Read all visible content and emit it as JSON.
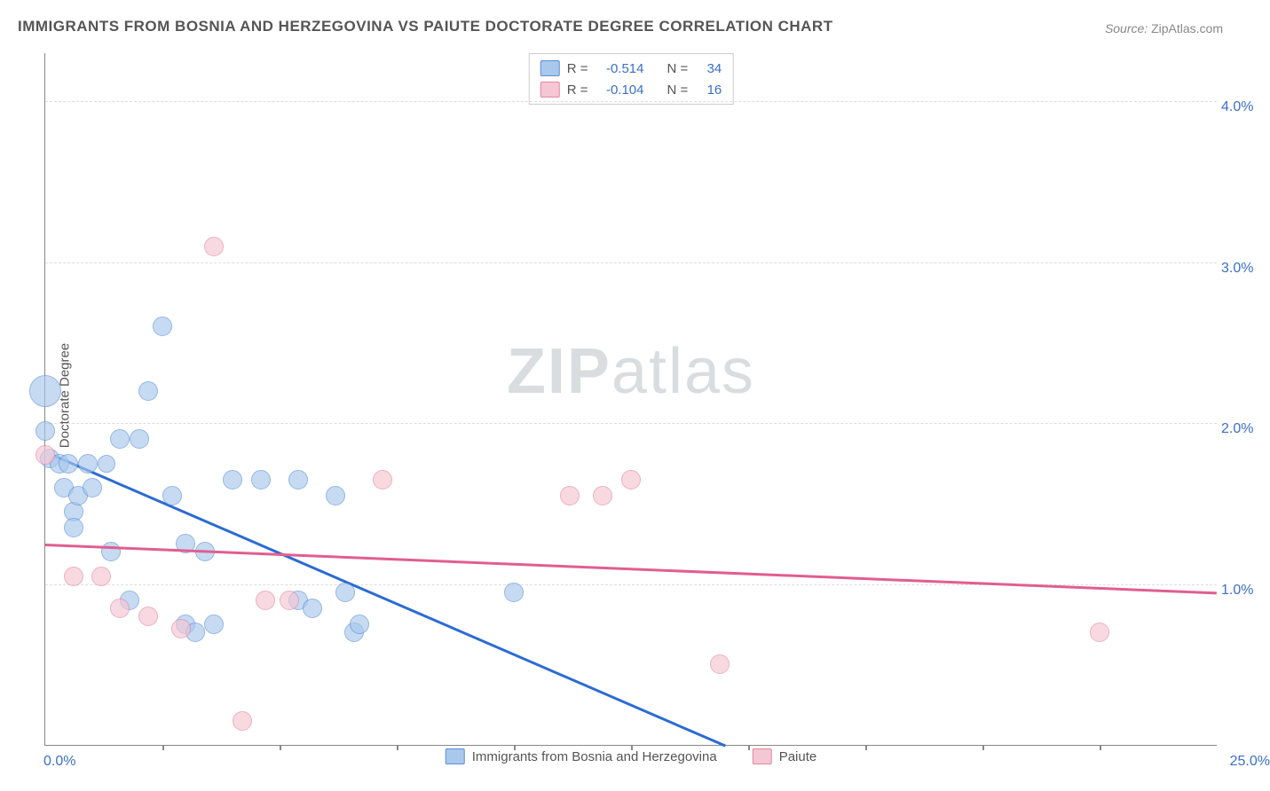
{
  "title": "IMMIGRANTS FROM BOSNIA AND HERZEGOVINA VS PAIUTE DOCTORATE DEGREE CORRELATION CHART",
  "source_label": "Source:",
  "source_value": "ZipAtlas.com",
  "ylabel": "Doctorate Degree",
  "watermark_a": "ZIP",
  "watermark_b": "atlas",
  "xlim": [
    0,
    25
  ],
  "ylim": [
    0,
    4.3
  ],
  "xtick_min": "0.0%",
  "xtick_max": "25.0%",
  "xtick_marks": [
    2.5,
    5.0,
    7.5,
    10.0,
    12.5,
    15.0,
    17.5,
    20.0,
    22.5
  ],
  "yticks": [
    {
      "v": 1.0,
      "label": "1.0%"
    },
    {
      "v": 2.0,
      "label": "2.0%"
    },
    {
      "v": 3.0,
      "label": "3.0%"
    },
    {
      "v": 4.0,
      "label": "4.0%"
    }
  ],
  "series": [
    {
      "name": "Immigrants from Bosnia and Herzegovina",
      "fill": "#a8c8ec",
      "stroke": "#5b8fd6",
      "opacity": 0.65,
      "r_label": "R =",
      "r_value": "-0.514",
      "n_label": "N =",
      "n_value": "34",
      "trend": {
        "x1": 0.2,
        "y1": 1.8,
        "x2": 14.5,
        "y2": 0.0,
        "color": "#2b6bd4"
      },
      "points": [
        {
          "x": 0.0,
          "y": 2.2,
          "r": 17
        },
        {
          "x": 0.0,
          "y": 1.95,
          "r": 10
        },
        {
          "x": 0.1,
          "y": 1.78,
          "r": 10
        },
        {
          "x": 0.3,
          "y": 1.75,
          "r": 10
        },
        {
          "x": 0.4,
          "y": 1.6,
          "r": 10
        },
        {
          "x": 0.5,
          "y": 1.75,
          "r": 10
        },
        {
          "x": 0.6,
          "y": 1.45,
          "r": 10
        },
        {
          "x": 0.6,
          "y": 1.35,
          "r": 10
        },
        {
          "x": 0.7,
          "y": 1.55,
          "r": 10
        },
        {
          "x": 0.9,
          "y": 1.75,
          "r": 10
        },
        {
          "x": 1.0,
          "y": 1.6,
          "r": 10
        },
        {
          "x": 1.3,
          "y": 1.75,
          "r": 9
        },
        {
          "x": 1.4,
          "y": 1.2,
          "r": 10
        },
        {
          "x": 1.6,
          "y": 1.9,
          "r": 10
        },
        {
          "x": 1.8,
          "y": 0.9,
          "r": 10
        },
        {
          "x": 2.0,
          "y": 1.9,
          "r": 10
        },
        {
          "x": 2.2,
          "y": 2.2,
          "r": 10
        },
        {
          "x": 2.5,
          "y": 2.6,
          "r": 10
        },
        {
          "x": 2.7,
          "y": 1.55,
          "r": 10
        },
        {
          "x": 3.0,
          "y": 1.25,
          "r": 10
        },
        {
          "x": 3.0,
          "y": 0.75,
          "r": 10
        },
        {
          "x": 3.2,
          "y": 0.7,
          "r": 10
        },
        {
          "x": 3.4,
          "y": 1.2,
          "r": 10
        },
        {
          "x": 3.6,
          "y": 0.75,
          "r": 10
        },
        {
          "x": 4.0,
          "y": 1.65,
          "r": 10
        },
        {
          "x": 4.6,
          "y": 1.65,
          "r": 10
        },
        {
          "x": 5.4,
          "y": 0.9,
          "r": 10
        },
        {
          "x": 5.4,
          "y": 1.65,
          "r": 10
        },
        {
          "x": 5.7,
          "y": 0.85,
          "r": 10
        },
        {
          "x": 6.2,
          "y": 1.55,
          "r": 10
        },
        {
          "x": 6.4,
          "y": 0.95,
          "r": 10
        },
        {
          "x": 6.6,
          "y": 0.7,
          "r": 10
        },
        {
          "x": 6.7,
          "y": 0.75,
          "r": 10
        },
        {
          "x": 10.0,
          "y": 0.95,
          "r": 10
        }
      ]
    },
    {
      "name": "Paiute",
      "fill": "#f5c6d4",
      "stroke": "#e385a5",
      "opacity": 0.65,
      "r_label": "R =",
      "r_value": "-0.104",
      "n_label": "N =",
      "n_value": "16",
      "trend": {
        "x1": 0.0,
        "y1": 1.25,
        "x2": 25.0,
        "y2": 0.95,
        "color": "#e15e8f"
      },
      "points": [
        {
          "x": 0.0,
          "y": 1.8,
          "r": 10
        },
        {
          "x": 0.6,
          "y": 1.05,
          "r": 10
        },
        {
          "x": 1.2,
          "y": 1.05,
          "r": 10
        },
        {
          "x": 1.6,
          "y": 0.85,
          "r": 10
        },
        {
          "x": 2.2,
          "y": 0.8,
          "r": 10
        },
        {
          "x": 2.9,
          "y": 0.72,
          "r": 10
        },
        {
          "x": 3.6,
          "y": 3.1,
          "r": 10
        },
        {
          "x": 4.2,
          "y": 0.15,
          "r": 10
        },
        {
          "x": 4.7,
          "y": 0.9,
          "r": 10
        },
        {
          "x": 5.2,
          "y": 0.9,
          "r": 10
        },
        {
          "x": 7.2,
          "y": 1.65,
          "r": 10
        },
        {
          "x": 11.2,
          "y": 1.55,
          "r": 10
        },
        {
          "x": 11.9,
          "y": 1.55,
          "r": 10
        },
        {
          "x": 12.5,
          "y": 1.65,
          "r": 10
        },
        {
          "x": 14.4,
          "y": 0.5,
          "r": 10
        },
        {
          "x": 22.5,
          "y": 0.7,
          "r": 10
        }
      ]
    }
  ]
}
